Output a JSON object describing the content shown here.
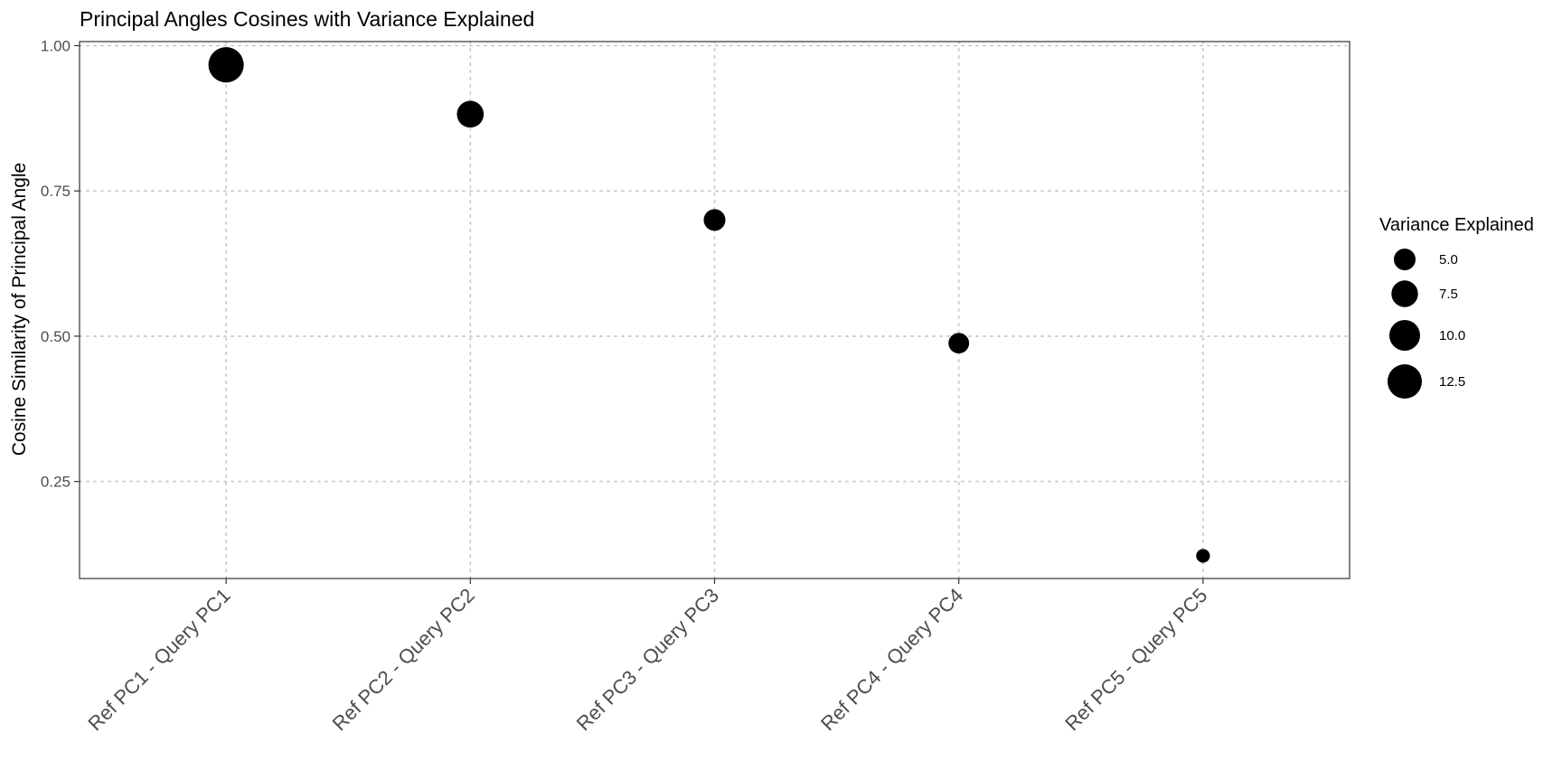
{
  "chart_data": {
    "type": "scatter",
    "title": "Principal Angles Cosines with Variance Explained",
    "xlabel": "",
    "ylabel": "Cosine Similarity of Principal Angle",
    "categories": [
      "Ref PC1 - Query PC1",
      "Ref PC2 - Query PC2",
      "Ref PC3 - Query PC3",
      "Ref PC4 - Query PC4",
      "Ref PC5 - Query PC5"
    ],
    "values": [
      0.967,
      0.882,
      0.7,
      0.488,
      0.122
    ],
    "sizes": [
      13.2,
      7.6,
      5.0,
      4.5,
      2.0
    ],
    "ylim": [
      0.083,
      1.007
    ],
    "yticks": [
      0.25,
      0.5,
      0.75,
      1.0
    ],
    "ytick_labels": [
      "0.25",
      "0.50",
      "0.75",
      "1.00"
    ],
    "grid": true,
    "legend": {
      "title": "Variance Explained",
      "position": "right",
      "entries": [
        {
          "value": 5.0,
          "label": "5.0"
        },
        {
          "value": 7.5,
          "label": "7.5"
        },
        {
          "value": 10.0,
          "label": "10.0"
        },
        {
          "value": 12.5,
          "label": "12.5"
        }
      ]
    },
    "colors": {
      "point": "#000000",
      "grid": "#c8c8c8",
      "panel_border": "#333333",
      "tick_text": "#4d4d4d"
    }
  }
}
